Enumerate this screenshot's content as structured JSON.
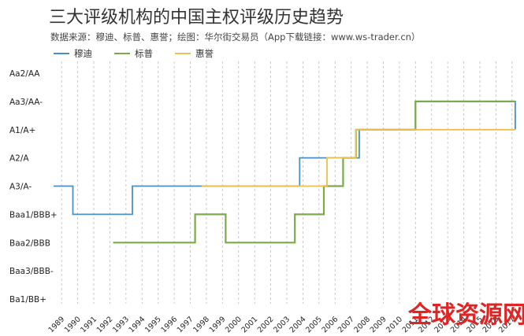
{
  "title": "三大评级机构的中国主权评级历史趋势",
  "subtitle": "数据来源：穆迪、标普、惠誉；绘图：华尔街交易员（App下载链接：www.ws-trader.cn）",
  "watermark": "全球资源网",
  "chart_data": {
    "type": "line",
    "step": true,
    "y_categories": [
      "Ba1/BB+",
      "Baa3/BBB-",
      "Baa2/BBB",
      "Baa1/BBB+",
      "A3/A-",
      "A2/A",
      "A1/A+",
      "Aa3/AA-",
      "Aa2/AA"
    ],
    "x_ticks": [
      "1989",
      "1990",
      "1991",
      "1992",
      "1993",
      "1994",
      "1995",
      "1996",
      "1997",
      "1998",
      "1999",
      "2000",
      "2001",
      "2002",
      "2003",
      "2004",
      "2005",
      "2006",
      "2007",
      "2008",
      "2009",
      "2010",
      "2011",
      "2012",
      "2013",
      "2014",
      "2015",
      "2016",
      "2017"
    ],
    "xlim": [
      1988.5,
      2017.5
    ],
    "grid": "vertical dashed",
    "legend_position": "top-left",
    "series": [
      {
        "name": "穆迪",
        "color": "#4a90c4",
        "points": [
          [
            1988.5,
            "A3/A-"
          ],
          [
            1989.7,
            "A3/A-"
          ],
          [
            1989.7,
            "Baa1/BBB+"
          ],
          [
            1993.4,
            "Baa1/BBB+"
          ],
          [
            1993.4,
            "A3/A-"
          ],
          [
            2003.8,
            "A3/A-"
          ],
          [
            2003.8,
            "A2/A"
          ],
          [
            2007.5,
            "A2/A"
          ],
          [
            2007.5,
            "A1/A+"
          ],
          [
            2011.0,
            "A1/A+"
          ],
          [
            2011.0,
            "Aa3/AA-"
          ],
          [
            2017.2,
            "Aa3/AA-"
          ],
          [
            2017.2,
            "A1/A+"
          ]
        ]
      },
      {
        "name": "标普",
        "color": "#7aab48",
        "points": [
          [
            1992.2,
            "Baa2/BBB"
          ],
          [
            1997.3,
            "Baa2/BBB"
          ],
          [
            1997.3,
            "Baa1/BBB+"
          ],
          [
            1999.2,
            "Baa1/BBB+"
          ],
          [
            1999.2,
            "Baa2/BBB"
          ],
          [
            2003.5,
            "Baa2/BBB"
          ],
          [
            2003.5,
            "Baa1/BBB+"
          ],
          [
            2005.3,
            "Baa1/BBB+"
          ],
          [
            2005.3,
            "A3/A-"
          ],
          [
            2006.5,
            "A3/A-"
          ],
          [
            2006.5,
            "A2/A"
          ],
          [
            2007.3,
            "A2/A"
          ],
          [
            2007.3,
            "A1/A+"
          ],
          [
            2008.4,
            "A1/A+"
          ],
          [
            2011.0,
            "A1/A+"
          ],
          [
            2011.0,
            "Aa3/AA-"
          ],
          [
            2017.2,
            "Aa3/AA-"
          ]
        ]
      },
      {
        "name": "惠誉",
        "color": "#e8c24a",
        "points": [
          [
            1997.7,
            "A3/A-"
          ],
          [
            2005.5,
            "A3/A-"
          ],
          [
            2005.5,
            "A2/A"
          ],
          [
            2007.3,
            "A2/A"
          ],
          [
            2007.3,
            "A1/A+"
          ],
          [
            2017.2,
            "A1/A+"
          ]
        ]
      }
    ]
  }
}
